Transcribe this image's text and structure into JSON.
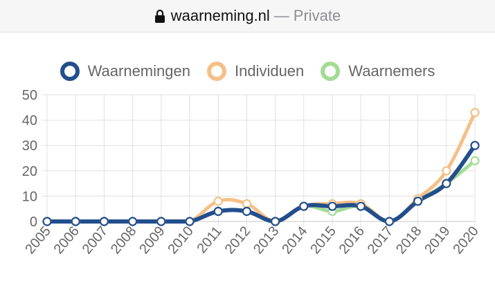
{
  "browser": {
    "domain": "waarneming.nl",
    "separator": "—",
    "mode": "Private"
  },
  "chart_data": {
    "type": "line",
    "title": "",
    "xlabel": "",
    "ylabel": "",
    "categories": [
      "2005",
      "2006",
      "2007",
      "2008",
      "2009",
      "2010",
      "2011",
      "2012",
      "2013",
      "2014",
      "2015",
      "2016",
      "2017",
      "2018",
      "2019",
      "2020"
    ],
    "ylim": [
      0,
      50
    ],
    "yticks": [
      0,
      10,
      20,
      30,
      40,
      50
    ],
    "grid": true,
    "legend": "top",
    "series": [
      {
        "name": "Waarnemingen",
        "color": "#234e8c",
        "values": [
          0,
          0,
          0,
          0,
          0,
          0,
          4,
          4,
          0,
          6,
          6,
          6,
          0,
          8,
          15,
          30
        ]
      },
      {
        "name": "Individuen",
        "color": "#f5c088",
        "values": [
          0,
          0,
          0,
          0,
          0,
          0,
          8,
          7,
          0,
          6,
          7,
          7,
          0,
          9,
          20,
          43
        ]
      },
      {
        "name": "Waarnemers",
        "color": "#a4dc96",
        "values": [
          0,
          0,
          0,
          0,
          0,
          0,
          4,
          4,
          0,
          6,
          4,
          6,
          0,
          8,
          15,
          24
        ]
      }
    ]
  }
}
